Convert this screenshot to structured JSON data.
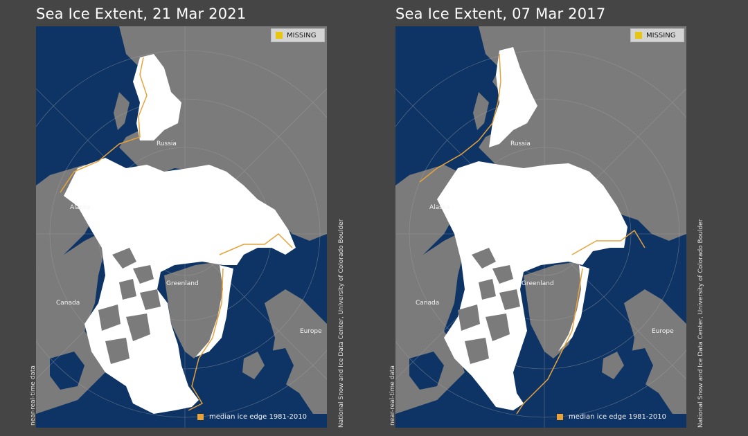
{
  "colors": {
    "background": "#454545",
    "ocean": "#0e3466",
    "land": "#7b7b7b",
    "sea_ice": "#ffffff",
    "median_edge": "#e8a23a",
    "missing": "#e8c60f"
  },
  "panels": [
    {
      "title": "Sea Ice Extent, 21 Mar 2021",
      "missing_label": "MISSING",
      "median_label": "median ice edge 1981-2010",
      "labels": {
        "russia": "Russia",
        "alaska": "Alaska",
        "canada": "Canada",
        "greenland": "Greenland",
        "europe": "Europe"
      },
      "credit_side": "National Snow and Ice Data Center, University of Colorado Boulder",
      "credit_bottom": "near-real-time data"
    },
    {
      "title": "Sea Ice Extent, 07 Mar 2017",
      "missing_label": "MISSING",
      "median_label": "median ice edge 1981-2010",
      "labels": {
        "russia": "Russia",
        "alaska": "Alaska",
        "canada": "Canada",
        "greenland": "Greenland",
        "europe": "Europe"
      },
      "credit_side": "National Snow and Ice Data Center, University of Colorado Boulder",
      "credit_bottom": "near-real-time data"
    }
  ]
}
